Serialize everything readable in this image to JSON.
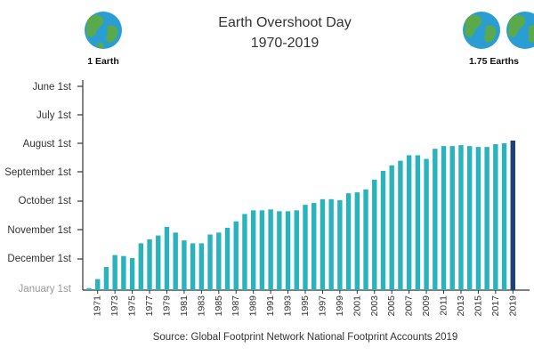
{
  "chart_data": {
    "type": "bar",
    "title": [
      "Earth Overshoot Day",
      "1970-2019"
    ],
    "xlabel": "",
    "ylabel": "",
    "source": "Source: Global Footprint Network National Footprint Accounts 2019",
    "y_ticks": [
      "June 1st",
      "July 1st",
      "August 1st",
      "September 1st",
      "October 1st",
      "November 1st",
      "December 1st",
      "January 1st"
    ],
    "y_axis_note": "Date of Earth Overshoot Day; later dates toward the bottom",
    "x_tick_labels": [
      "1971",
      "1973",
      "1975",
      "1977",
      "1979",
      "1981",
      "1983",
      "1985",
      "1987",
      "1989",
      "1991",
      "1993",
      "1995",
      "1997",
      "1999",
      "2001",
      "2003",
      "2005",
      "2007",
      "2009",
      "2011",
      "2013",
      "2015",
      "2017",
      "2019"
    ],
    "categories": [
      "1970",
      "1971",
      "1972",
      "1973",
      "1974",
      "1975",
      "1976",
      "1977",
      "1978",
      "1979",
      "1980",
      "1981",
      "1982",
      "1983",
      "1984",
      "1985",
      "1986",
      "1987",
      "1988",
      "1989",
      "1990",
      "1991",
      "1992",
      "1993",
      "1994",
      "1995",
      "1996",
      "1997",
      "1998",
      "1999",
      "2000",
      "2001",
      "2002",
      "2003",
      "2004",
      "2005",
      "2006",
      "2007",
      "2008",
      "2009",
      "2010",
      "2011",
      "2012",
      "2013",
      "2014",
      "2015",
      "2016",
      "2017",
      "2018",
      "2019"
    ],
    "values": [
      "Dec 30",
      "Dec 21",
      "Dec 9",
      "Nov 27",
      "Nov 28",
      "Nov 30",
      "Nov 15",
      "Nov 11",
      "Nov 7",
      "Oct 29",
      "Nov 4",
      "Nov 12",
      "Nov 15",
      "Nov 15",
      "Nov 6",
      "Nov 4",
      "Oct 30",
      "Oct 23",
      "Oct 15",
      "Oct 11",
      "Oct 11",
      "Oct 10",
      "Oct 12",
      "Oct 12",
      "Oct 11",
      "Oct 5",
      "Oct 3",
      "Sep 29",
      "Sep 29",
      "Sep 30",
      "Sep 23",
      "Sep 22",
      "Sep 19",
      "Sep 9",
      "Aug 31",
      "Aug 25",
      "Aug 20",
      "Aug 14",
      "Aug 14",
      "Aug 18",
      "Aug 7",
      "Aug 4",
      "Aug 4",
      "Aug 3",
      "Aug 4",
      "Aug 5",
      "Aug 5",
      "Aug 2",
      "Aug 1",
      "Jul 29"
    ],
    "highlight": {
      "category": "2019",
      "color": "#1f3f7a"
    },
    "bar_color": "#2bb3bd",
    "grid": false,
    "legend": "none"
  },
  "earths": {
    "left_label": "1 Earth",
    "right_label": "1.75  Earths",
    "ocean_color": "#2a9ed3",
    "land_color": "#5aa94a"
  }
}
